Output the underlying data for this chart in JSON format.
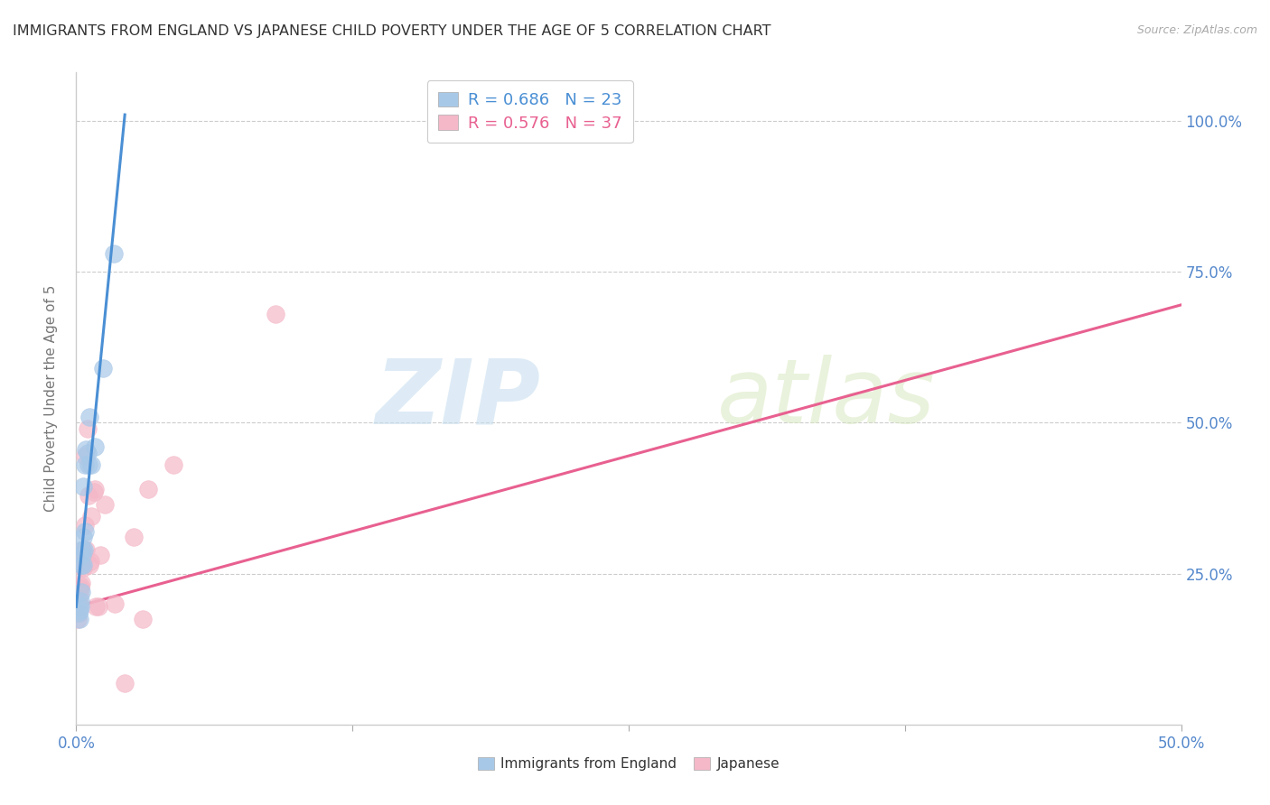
{
  "title": "IMMIGRANTS FROM ENGLAND VS JAPANESE CHILD POVERTY UNDER THE AGE OF 5 CORRELATION CHART",
  "source": "Source: ZipAtlas.com",
  "ylabel": "Child Poverty Under the Age of 5",
  "legend_r1_r": "0.686",
  "legend_r1_n": "23",
  "legend_r2_r": "0.576",
  "legend_r2_n": "37",
  "color_blue": "#a8c8e8",
  "color_pink": "#f4b8c8",
  "color_blue_dark": "#4a8fd4",
  "color_pink_dark": "#e86090",
  "color_axis": "#5588cc",
  "watermark_zip": "ZIP",
  "watermark_atlas": "atlas",
  "england_points": [
    [
      0.001,
      0.185
    ],
    [
      0.0013,
      0.175
    ],
    [
      0.0015,
      0.19
    ],
    [
      0.0018,
      0.205
    ],
    [
      0.002,
      0.195
    ],
    [
      0.0022,
      0.22
    ],
    [
      0.0025,
      0.265
    ],
    [
      0.0027,
      0.28
    ],
    [
      0.0028,
      0.29
    ],
    [
      0.003,
      0.31
    ],
    [
      0.003,
      0.395
    ],
    [
      0.0032,
      0.265
    ],
    [
      0.0035,
      0.29
    ],
    [
      0.0038,
      0.32
    ],
    [
      0.004,
      0.43
    ],
    [
      0.0042,
      0.455
    ],
    [
      0.005,
      0.45
    ],
    [
      0.0055,
      0.43
    ],
    [
      0.006,
      0.51
    ],
    [
      0.007,
      0.43
    ],
    [
      0.0085,
      0.46
    ],
    [
      0.012,
      0.59
    ],
    [
      0.017,
      0.78
    ]
  ],
  "japanese_points": [
    [
      0.0008,
      0.175
    ],
    [
      0.001,
      0.185
    ],
    [
      0.0012,
      0.195
    ],
    [
      0.0015,
      0.2
    ],
    [
      0.0016,
      0.215
    ],
    [
      0.0018,
      0.225
    ],
    [
      0.002,
      0.23
    ],
    [
      0.0022,
      0.235
    ],
    [
      0.0023,
      0.265
    ],
    [
      0.0025,
      0.275
    ],
    [
      0.0027,
      0.265
    ],
    [
      0.0028,
      0.265
    ],
    [
      0.003,
      0.285
    ],
    [
      0.003,
      0.26
    ],
    [
      0.0032,
      0.29
    ],
    [
      0.0035,
      0.275
    ],
    [
      0.0038,
      0.33
    ],
    [
      0.004,
      0.445
    ],
    [
      0.0045,
      0.29
    ],
    [
      0.005,
      0.49
    ],
    [
      0.0055,
      0.38
    ],
    [
      0.006,
      0.265
    ],
    [
      0.0065,
      0.27
    ],
    [
      0.007,
      0.345
    ],
    [
      0.008,
      0.385
    ],
    [
      0.0085,
      0.39
    ],
    [
      0.009,
      0.195
    ],
    [
      0.01,
      0.195
    ],
    [
      0.011,
      0.28
    ],
    [
      0.013,
      0.365
    ],
    [
      0.0175,
      0.2
    ],
    [
      0.022,
      0.068
    ],
    [
      0.026,
      0.31
    ],
    [
      0.03,
      0.175
    ],
    [
      0.0325,
      0.39
    ],
    [
      0.044,
      0.43
    ],
    [
      0.09,
      0.68
    ]
  ],
  "england_line_x": [
    0.0,
    0.022
  ],
  "england_line_y": [
    0.195,
    1.01
  ],
  "japanese_line_x": [
    0.0,
    0.5
  ],
  "japanese_line_y": [
    0.195,
    0.695
  ],
  "xlim": [
    0.0,
    0.5
  ],
  "ylim": [
    0.0,
    1.08
  ],
  "xtick_positions": [
    0.0,
    0.125,
    0.25,
    0.375,
    0.5
  ],
  "ytick_positions": [
    0.0,
    0.25,
    0.5,
    0.75,
    1.0
  ],
  "ytick_labels": [
    "",
    "25.0%",
    "50.0%",
    "75.0%",
    "100.0%"
  ]
}
